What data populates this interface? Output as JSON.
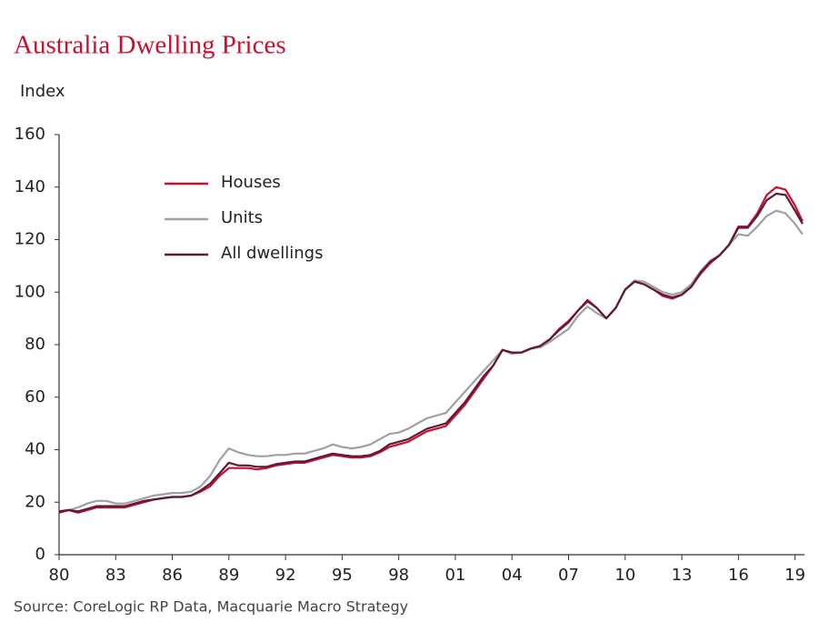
{
  "chart_data": {
    "type": "line",
    "title": "Australia Dwelling Prices",
    "y_label": "Index",
    "source": "Source: CoreLogic RP Data, Macquarie Macro Strategy",
    "x": [
      1980,
      1980.5,
      1981,
      1981.5,
      1982,
      1982.5,
      1983,
      1983.5,
      1984,
      1984.5,
      1985,
      1985.5,
      1986,
      1986.5,
      1987,
      1987.5,
      1988,
      1988.5,
      1989,
      1989.5,
      1990,
      1990.5,
      1991,
      1991.5,
      1992,
      1992.5,
      1993,
      1993.5,
      1994,
      1994.5,
      1995,
      1995.5,
      1996,
      1996.5,
      1997,
      1997.5,
      1998,
      1998.5,
      1999,
      1999.5,
      2000,
      2000.5,
      2001,
      2001.5,
      2002,
      2002.5,
      2003,
      2003.5,
      2004,
      2004.5,
      2005,
      2005.5,
      2006,
      2006.5,
      2007,
      2007.5,
      2008,
      2008.5,
      2009,
      2009.5,
      2010,
      2010.5,
      2011,
      2011.5,
      2012,
      2012.5,
      2013,
      2013.5,
      2014,
      2014.5,
      2015,
      2015.5,
      2016,
      2016.5,
      2017,
      2017.5,
      2018,
      2018.5,
      2019,
      2019.4
    ],
    "series": [
      {
        "name": "Houses",
        "color": "#c8102e",
        "values": [
          16,
          17,
          16,
          17,
          18,
          18,
          18,
          18,
          19,
          20,
          21,
          21.5,
          22,
          22,
          22.5,
          24,
          26,
          30,
          33,
          33,
          33,
          32.5,
          33,
          34,
          34.5,
          35,
          35,
          36,
          37,
          38,
          37.5,
          37,
          37,
          37.5,
          39,
          41,
          42,
          43,
          45,
          47,
          48,
          49,
          53,
          57,
          62,
          67,
          72,
          78,
          77,
          77,
          78.5,
          79.5,
          82,
          86,
          89,
          93,
          97,
          94,
          90,
          94,
          101,
          104,
          103,
          101,
          98.5,
          97.5,
          99,
          102,
          107,
          111,
          114,
          118,
          125,
          125,
          130,
          137,
          140,
          139,
          133,
          127
        ]
      },
      {
        "name": "Units",
        "color": "#a0a0a0",
        "values": [
          16,
          17,
          18,
          19.5,
          20.5,
          20.5,
          19.5,
          19.5,
          20.5,
          21.5,
          22.5,
          23,
          23.5,
          23.5,
          24,
          26,
          30,
          36,
          40.5,
          39,
          38,
          37.5,
          37.5,
          38,
          38,
          38.5,
          38.5,
          39.5,
          40.5,
          42,
          41,
          40.5,
          41,
          42,
          44,
          46,
          46.5,
          48,
          50,
          52,
          53,
          54,
          58,
          62,
          66,
          70,
          74,
          78,
          76.5,
          77,
          78.5,
          79,
          81,
          83.5,
          86,
          91,
          94.5,
          92,
          90,
          94,
          101,
          104.5,
          104,
          102,
          100,
          99,
          100,
          103,
          108,
          112,
          114,
          118,
          122,
          121.5,
          125,
          129,
          131,
          130,
          126,
          122
        ]
      },
      {
        "name": "All dwellings",
        "color": "#5b1a3a",
        "values": [
          16.5,
          17,
          16.5,
          17.5,
          18.5,
          18.5,
          18.5,
          18.5,
          19.5,
          20.5,
          21,
          21.5,
          22,
          22,
          22.5,
          24.5,
          27,
          31,
          35,
          34,
          34,
          33.5,
          33.5,
          34.5,
          35,
          35.5,
          35.5,
          36.5,
          37.5,
          38.5,
          38,
          37.5,
          37.5,
          38,
          39.5,
          42,
          43,
          44,
          46,
          48,
          49,
          50,
          54,
          58,
          63,
          68,
          72,
          78,
          77,
          77,
          78.5,
          79.5,
          82,
          85.5,
          88.5,
          93,
          96.5,
          94,
          90,
          94,
          101,
          104,
          103,
          101,
          99,
          98,
          99,
          102,
          107.5,
          111.5,
          114,
          118,
          124.5,
          124.5,
          129,
          135,
          137.5,
          137,
          131,
          126
        ]
      }
    ],
    "xlim": [
      1980,
      2019.5
    ],
    "ylim": [
      0,
      160
    ],
    "xticks": [
      {
        "value": 1980,
        "label": "80"
      },
      {
        "value": 1983,
        "label": "83"
      },
      {
        "value": 1986,
        "label": "86"
      },
      {
        "value": 1989,
        "label": "89"
      },
      {
        "value": 1992,
        "label": "92"
      },
      {
        "value": 1995,
        "label": "95"
      },
      {
        "value": 1998,
        "label": "98"
      },
      {
        "value": 2001,
        "label": "01"
      },
      {
        "value": 2004,
        "label": "04"
      },
      {
        "value": 2007,
        "label": "07"
      },
      {
        "value": 2010,
        "label": "10"
      },
      {
        "value": 2013,
        "label": "13"
      },
      {
        "value": 2016,
        "label": "16"
      },
      {
        "value": 2019,
        "label": "19"
      }
    ],
    "yticks": [
      0,
      20,
      40,
      60,
      80,
      100,
      120,
      140,
      160
    ]
  }
}
